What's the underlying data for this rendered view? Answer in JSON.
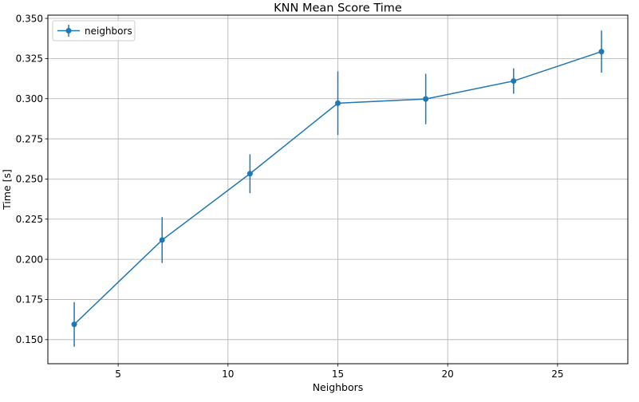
{
  "chart_data": {
    "type": "line",
    "title": "KNN Mean Score Time",
    "xlabel": "Neighbors",
    "ylabel": "Time [s]",
    "xlim": [
      1.8,
      28.2
    ],
    "ylim": [
      0.135,
      0.352
    ],
    "grid": true,
    "legend_position": "top-left",
    "x_ticks": [
      5,
      10,
      15,
      20,
      25
    ],
    "x_tick_labels": [
      "5",
      "10",
      "15",
      "20",
      "25"
    ],
    "y_ticks": [
      0.15,
      0.175,
      0.2,
      0.225,
      0.25,
      0.275,
      0.3,
      0.325,
      0.35
    ],
    "y_tick_labels": [
      "0.150",
      "0.175",
      "0.200",
      "0.225",
      "0.250",
      "0.275",
      "0.300",
      "0.325",
      "0.350"
    ],
    "series": [
      {
        "name": "neighbors",
        "color": "#1f77b4",
        "x": [
          3,
          7,
          11,
          15,
          19,
          23,
          27
        ],
        "y": [
          0.1595,
          0.212,
          0.2533,
          0.2972,
          0.2998,
          0.311,
          0.3293
        ],
        "yerr": [
          0.0139,
          0.0143,
          0.0121,
          0.0198,
          0.0157,
          0.0079,
          0.0131
        ]
      }
    ]
  }
}
